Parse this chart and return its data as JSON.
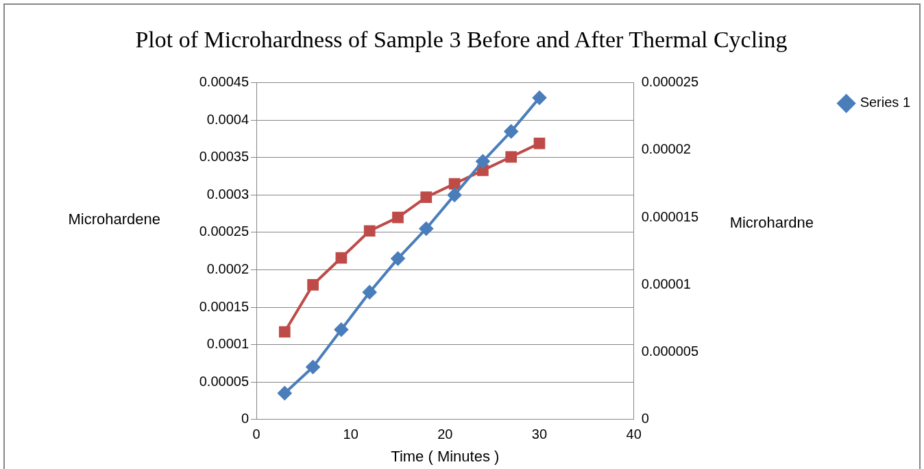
{
  "chart_data": {
    "type": "line",
    "title": "Plot of Microhardness of Sample 3 Before and After Thermal Cycling",
    "xlabel": "Time ( Minutes )",
    "ylabel": "Microhardene",
    "y2label": "Microhardne",
    "x": [
      3,
      6,
      9,
      12,
      15,
      18,
      21,
      24,
      27,
      30
    ],
    "xlim": [
      0,
      40
    ],
    "xticks": [
      0,
      10,
      20,
      30,
      40
    ],
    "ylim": [
      0,
      0.00045
    ],
    "yticks": [
      0,
      {
        "value": 5e-05,
        "label": "0.00005"
      },
      {
        "value": 0.0001,
        "label": "0.0001"
      },
      {
        "value": 0.00015,
        "label": "0.00015"
      },
      {
        "value": 0.0002,
        "label": "0.0002"
      },
      {
        "value": 0.00025,
        "label": "0.00025"
      },
      {
        "value": 0.0003,
        "label": "0.0003"
      },
      {
        "value": 0.00035,
        "label": "0.00035"
      },
      {
        "value": 0.0004,
        "label": "0.0004"
      },
      {
        "value": 0.00045,
        "label": "0.00045"
      }
    ],
    "y2lim": [
      0,
      2.5e-05
    ],
    "y2ticks": [
      0,
      {
        "value": 5e-06,
        "label": "0.000005"
      },
      {
        "value": 1e-05,
        "label": "0.00001"
      },
      {
        "value": 1.5e-05,
        "label": "0.000015"
      },
      {
        "value": 2e-05,
        "label": "0.00002"
      },
      {
        "value": 2.5e-05,
        "label": "0.000025"
      }
    ],
    "grid": "y",
    "legend": "right",
    "series": [
      {
        "name": "Series 1",
        "color": "#4a7ebb",
        "marker": "diamond",
        "values": [
          3.5e-05,
          7e-05,
          0.00012,
          0.00017,
          0.000215,
          0.000255,
          0.0003,
          0.000345,
          0.000385,
          0.00043
        ]
      },
      {
        "color": "#be4b48",
        "marker": "square",
        "axis": "y2",
        "values": [
          6.5e-06,
          1e-05,
          1.2e-05,
          1.4e-05,
          1.5e-05,
          1.65e-05,
          1.75e-05,
          1.85e-05,
          1.95e-05,
          2.05e-05
        ]
      }
    ]
  }
}
